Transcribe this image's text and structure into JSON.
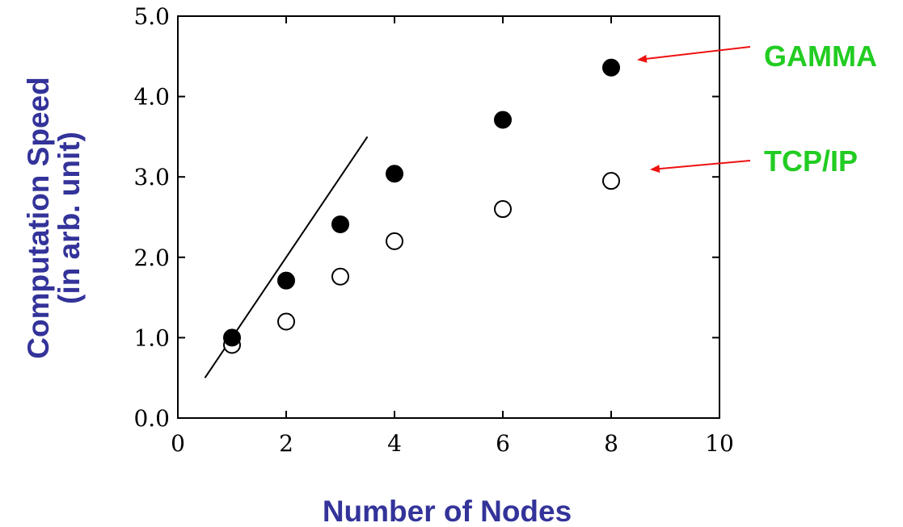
{
  "chart_data": {
    "type": "scatter",
    "title": "",
    "xlabel": "Number of Nodes",
    "ylabel_line1": "Computation Speed",
    "ylabel_line2": "(in arb. unit)",
    "xlim": [
      0,
      10
    ],
    "ylim": [
      0.0,
      5.0
    ],
    "x_ticks": [
      0,
      2,
      4,
      6,
      8,
      10
    ],
    "x_tick_labels": [
      "0",
      "2",
      "4",
      "6",
      "8",
      "10"
    ],
    "y_ticks": [
      0.0,
      1.0,
      2.0,
      3.0,
      4.0,
      5.0
    ],
    "y_tick_labels": [
      "0.0",
      "1.0",
      "2.0",
      "3.0",
      "4.0",
      "5.0"
    ],
    "grid": false,
    "series": [
      {
        "name": "GAMMA",
        "marker": "filled-circle",
        "x": [
          1,
          2,
          3,
          4,
          6,
          8
        ],
        "y": [
          1.0,
          1.71,
          2.41,
          3.04,
          3.71,
          4.36
        ]
      },
      {
        "name": "TCP/IP",
        "marker": "open-circle",
        "x": [
          1,
          2,
          3,
          4,
          6,
          8
        ],
        "y": [
          0.91,
          1.2,
          1.76,
          2.2,
          2.6,
          2.95
        ]
      }
    ],
    "reference_line": {
      "x": [
        0.5,
        3.5
      ],
      "y": [
        0.5,
        3.5
      ]
    },
    "annotations": [
      {
        "label": "GAMMA",
        "series": "GAMMA"
      },
      {
        "label": "TCP/IP",
        "series": "TCP/IP"
      }
    ],
    "colors": {
      "axis_title": "#33339a",
      "annotation_text": "#22cc22",
      "arrow": "#ee1111",
      "marks": "#000000"
    }
  }
}
